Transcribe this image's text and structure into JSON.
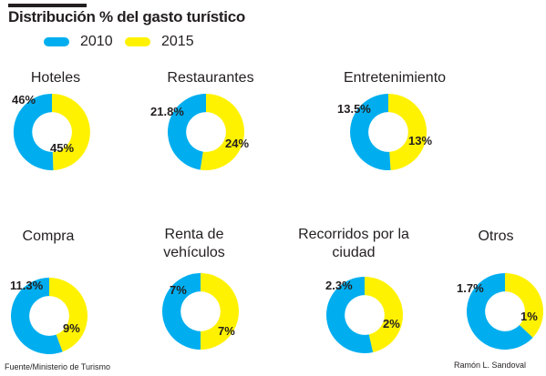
{
  "title": "Distribución % del gasto turístico",
  "legend": [
    {
      "label": "2010",
      "color": "#00aeef"
    },
    {
      "label": "2015",
      "color": "#fff200"
    }
  ],
  "chart_data": [
    {
      "type": "pie",
      "title": "Hoteles",
      "series": [
        {
          "name": "2010",
          "value": 46
        },
        {
          "name": "2015",
          "value": 45
        }
      ],
      "labels": [
        "46%",
        "45%"
      ]
    },
    {
      "type": "pie",
      "title": "Restaurantes",
      "series": [
        {
          "name": "2010",
          "value": 21.8
        },
        {
          "name": "2015",
          "value": 24
        }
      ],
      "labels": [
        "21.8%",
        "24%"
      ]
    },
    {
      "type": "pie",
      "title": "Entretenimiento",
      "series": [
        {
          "name": "2010",
          "value": 13.5
        },
        {
          "name": "2015",
          "value": 13
        }
      ],
      "labels": [
        "13.5%",
        "13%"
      ]
    },
    {
      "type": "pie",
      "title": "Compra",
      "series": [
        {
          "name": "2010",
          "value": 11.3
        },
        {
          "name": "2015",
          "value": 9
        }
      ],
      "labels": [
        "11.3%",
        "9%"
      ]
    },
    {
      "type": "pie",
      "title": "Renta de vehículos",
      "series": [
        {
          "name": "2010",
          "value": 7
        },
        {
          "name": "2015",
          "value": 7
        }
      ],
      "labels": [
        "7%",
        "7%"
      ]
    },
    {
      "type": "pie",
      "title": "Recorridos por la ciudad",
      "series": [
        {
          "name": "2010",
          "value": 2.3
        },
        {
          "name": "2015",
          "value": 2
        }
      ],
      "labels": [
        "2.3%",
        "2%"
      ]
    },
    {
      "type": "pie",
      "title": "Otros",
      "series": [
        {
          "name": "2010",
          "value": 1.7
        },
        {
          "name": "2015",
          "value": 1
        }
      ],
      "labels": [
        "1.7%",
        "1%"
      ]
    }
  ],
  "source": "Fuente/Ministerio de Turismo",
  "byline": "Ramón L. Sandoval"
}
